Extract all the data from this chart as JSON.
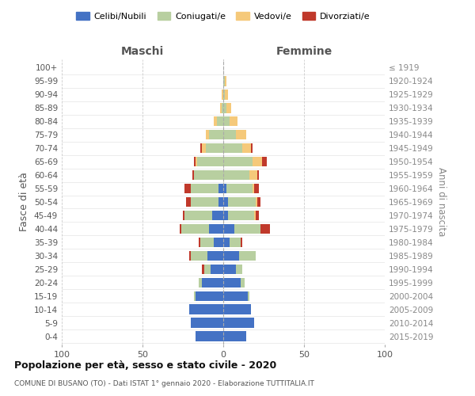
{
  "age_groups": [
    "0-4",
    "5-9",
    "10-14",
    "15-19",
    "20-24",
    "25-29",
    "30-34",
    "35-39",
    "40-44",
    "45-49",
    "50-54",
    "55-59",
    "60-64",
    "65-69",
    "70-74",
    "75-79",
    "80-84",
    "85-89",
    "90-94",
    "95-99",
    "100+"
  ],
  "birth_years": [
    "2015-2019",
    "2010-2014",
    "2005-2009",
    "2000-2004",
    "1995-1999",
    "1990-1994",
    "1985-1989",
    "1980-1984",
    "1975-1979",
    "1970-1974",
    "1965-1969",
    "1960-1964",
    "1955-1959",
    "1950-1954",
    "1945-1949",
    "1940-1944",
    "1935-1939",
    "1930-1934",
    "1925-1929",
    "1920-1924",
    "≤ 1919"
  ],
  "maschi": {
    "celibi": [
      17,
      20,
      21,
      17,
      13,
      8,
      10,
      6,
      9,
      7,
      3,
      3,
      0,
      0,
      0,
      0,
      0,
      0,
      0,
      0,
      0
    ],
    "coniugati": [
      0,
      0,
      0,
      1,
      2,
      4,
      10,
      8,
      17,
      17,
      17,
      17,
      18,
      16,
      11,
      9,
      4,
      1,
      0,
      0,
      0
    ],
    "vedovi": [
      0,
      0,
      0,
      0,
      0,
      0,
      0,
      0,
      0,
      0,
      0,
      0,
      0,
      1,
      2,
      2,
      2,
      1,
      1,
      0,
      0
    ],
    "divorziati": [
      0,
      0,
      0,
      0,
      0,
      1,
      1,
      1,
      1,
      1,
      3,
      4,
      1,
      1,
      1,
      0,
      0,
      0,
      0,
      0,
      0
    ]
  },
  "femmine": {
    "nubili": [
      14,
      19,
      17,
      15,
      11,
      8,
      10,
      4,
      7,
      3,
      3,
      2,
      0,
      0,
      0,
      0,
      0,
      0,
      0,
      0,
      0
    ],
    "coniugate": [
      0,
      0,
      0,
      1,
      2,
      4,
      10,
      7,
      16,
      16,
      17,
      16,
      16,
      18,
      12,
      8,
      4,
      2,
      1,
      1,
      0
    ],
    "vedove": [
      0,
      0,
      0,
      0,
      0,
      0,
      0,
      0,
      0,
      1,
      1,
      1,
      5,
      6,
      5,
      6,
      5,
      3,
      2,
      1,
      0
    ],
    "divorziate": [
      0,
      0,
      0,
      0,
      0,
      0,
      0,
      1,
      6,
      2,
      2,
      3,
      1,
      3,
      1,
      0,
      0,
      0,
      0,
      0,
      0
    ]
  },
  "colors": {
    "celibi": "#4472c4",
    "coniugati": "#b8cfa0",
    "vedovi": "#f5c97a",
    "divorziati": "#c0392b"
  },
  "title": "Popolazione per età, sesso e stato civile - 2020",
  "subtitle": "COMUNE DI BUSANO (TO) - Dati ISTAT 1° gennaio 2020 - Elaborazione TUTTITALIA.IT",
  "xlabel_left": "Maschi",
  "xlabel_right": "Femmine",
  "ylabel_left": "Fasce di età",
  "ylabel_right": "Anni di nascita",
  "xlim": 100,
  "legend_labels": [
    "Celibi/Nubili",
    "Coniugati/e",
    "Vedovi/e",
    "Divorziati/e"
  ],
  "background_color": "#ffffff",
  "grid_color": "#cccccc"
}
